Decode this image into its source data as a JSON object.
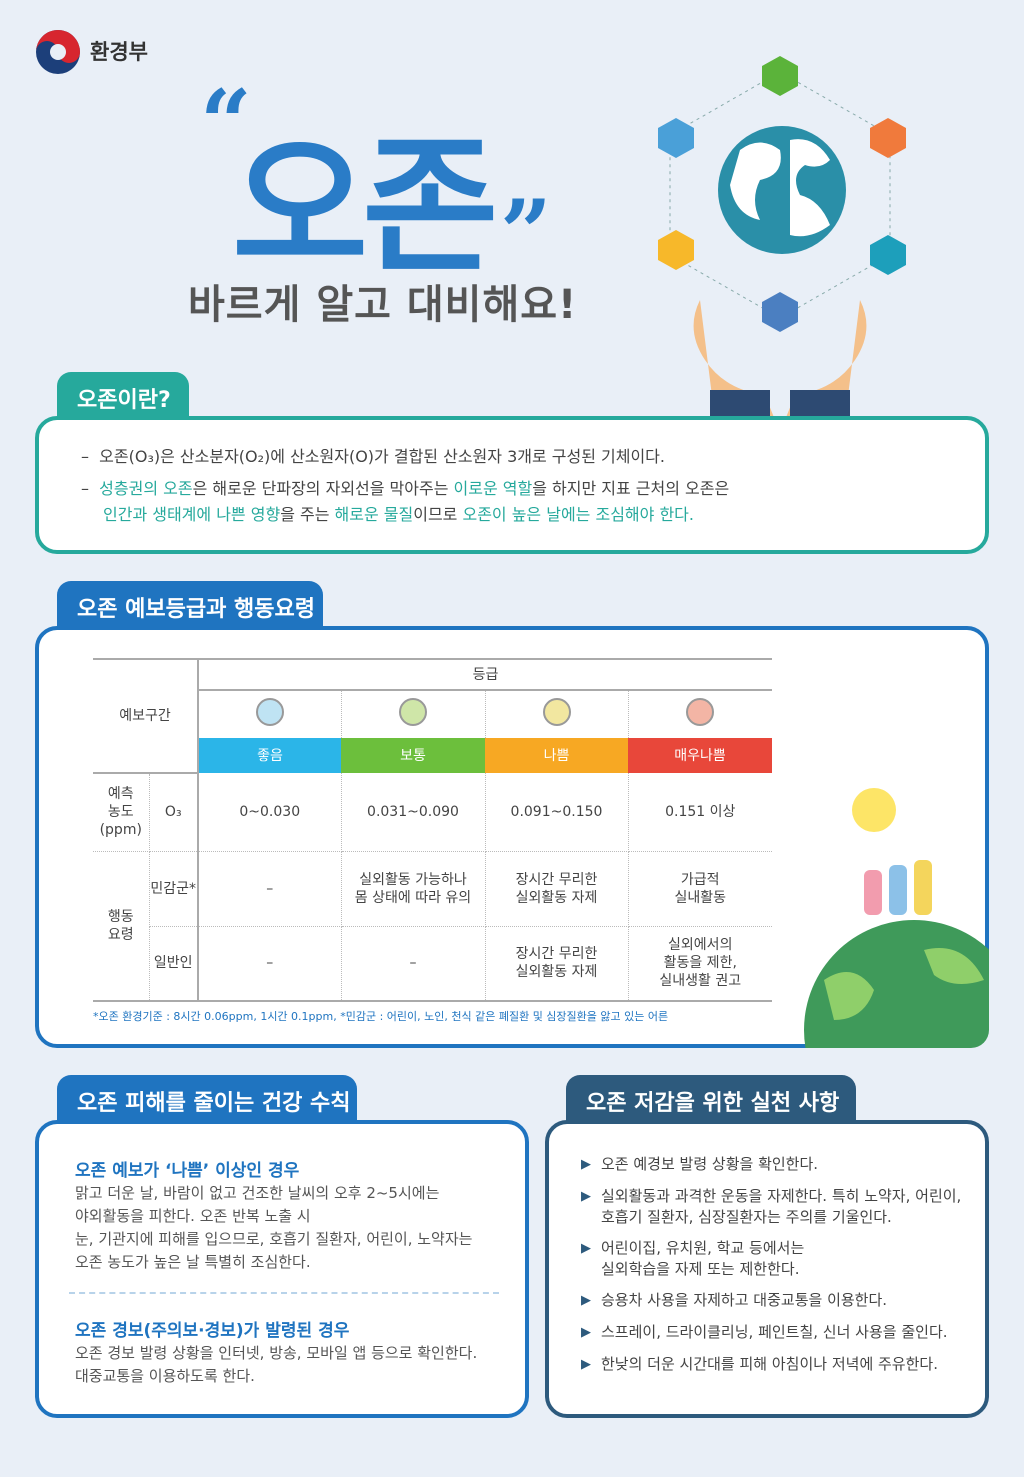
{
  "header": {
    "ministry": "환경부",
    "title": "오존",
    "open_quote": "“",
    "close_quote": "”",
    "subtitle": "바르게 알고 대비해요!"
  },
  "colors": {
    "teal": "#26a99c",
    "blue": "#1f74c0",
    "navy": "#2d5a7d",
    "good": "#2bb5e8",
    "normal": "#6cbf3c",
    "bad": "#f7a823",
    "very_bad": "#e8473a"
  },
  "section1": {
    "title": "오존이란?",
    "line1": "오존(O₃)은 산소분자(O₂)에 산소원자(O)가 결합된 산소원자 3개로 구성된 기체이다.",
    "line2": [
      {
        "t": "성층권의 오존",
        "hl": true
      },
      {
        "t": "은 해로운 단파장의 자외선을 막아주는 "
      },
      {
        "t": "이로운 역할",
        "hl": true
      },
      {
        "t": "을 하지만 지표 근처의 오존은"
      }
    ],
    "line3": [
      {
        "t": "인간과 생태계에 나쁜 영향",
        "hl": true
      },
      {
        "t": "을 주는 "
      },
      {
        "t": "해로운 물질",
        "hl": true
      },
      {
        "t": "이므로 "
      },
      {
        "t": "오존이 높은 날에는 조심해야 한다.",
        "hl": true
      }
    ],
    "dash": "–"
  },
  "section2": {
    "title": "오존 예보등급과 행동요령",
    "table": {
      "forecast_label": "예보구간",
      "grade_label": "등급",
      "grades": [
        "좋음",
        "보통",
        "나쁨",
        "매우나쁨"
      ],
      "conc_label": "예측\n농도\n(ppm)",
      "o3": "O₃",
      "conc": [
        "0~0.030",
        "0.031~0.090",
        "0.091~0.150",
        "0.151 이상"
      ],
      "action_label": "행동\n요령",
      "sensitive_label": "민감군*",
      "sensitive": [
        "–",
        "실외활동 가능하나\n몸 상태에 따라 유의",
        "장시간 무리한\n실외활동 자제",
        "가급적\n실내활동"
      ],
      "general_label": "일반인",
      "general": [
        "–",
        "–",
        "장시간 무리한\n실외활동 자제",
        "실외에서의\n활동을 제한,\n실내생활 권고"
      ]
    },
    "note": "*오존 환경기준 : 8시간 0.06ppm, 1시간 0.1ppm, *민감군 : 어린이, 노인, 천식 같은 폐질환 및 심장질환을 앓고 있는 어른"
  },
  "section3": {
    "title": "오존 피해를 줄이는 건강 수칙",
    "h1": "오존 예보가 ‘나쁨’ 이상인 경우",
    "p1": [
      "맑고 더운 날, 바람이 없고 건조한 날씨의 오후 2~5시에는",
      "야외활동을 피한다. 오존 반복 노출 시",
      "눈, 기관지에 피해를 입으므로, 호흡기 질환자, 어린이, 노약자는",
      "오존 농도가 높은 날 특별히 조심한다."
    ],
    "h2": "오존 경보(주의보·경보)가 발령된 경우",
    "p2": [
      "오존 경보 발령 상황을 인터넷, 방송, 모바일 앱 등으로 확인한다.",
      "대중교통을 이용하도록 한다."
    ]
  },
  "section4": {
    "title": "오존 저감을 위한 실천 사항",
    "bullet": "▶",
    "items": [
      "오존 예경보 발령 상황을 확인한다.",
      "실외활동과 과격한 운동을 자제한다. 특히 노약자, 어린이,\n호흡기 질환자, 심장질환자는 주의를 기울인다.",
      "어린이집, 유치원, 학교 등에서는\n실외학습을 자제 또는 제한한다.",
      "승용차 사용을 자제하고 대중교통을 이용한다.",
      "스프레이, 드라이클리닝, 페인트칠, 신너 사용을 줄인다.",
      "한낮의 더운 시간대를 피해 아침이나 저녁에 주유한다."
    ]
  }
}
